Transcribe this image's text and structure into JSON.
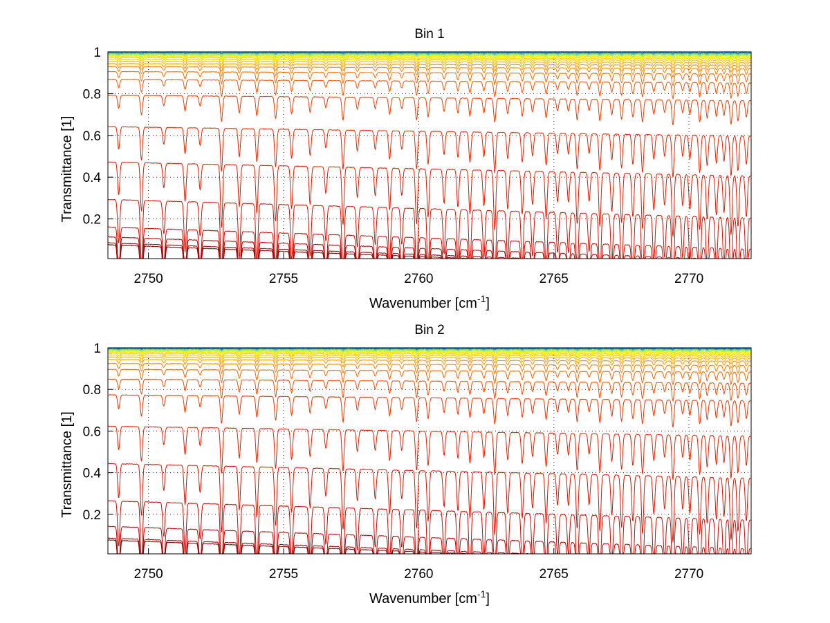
{
  "chart_data": [
    {
      "type": "line",
      "title": "Bin 1",
      "xlabel": "Wavenumber [cm",
      "xlabel_sup": "-1",
      "xlabel_suffix": "]",
      "ylabel": "Transmittance [1]",
      "xlim": [
        2748.5,
        2772.3
      ],
      "ylim": [
        0.01,
        1.0
      ],
      "xticks": [
        2750,
        2755,
        2760,
        2765,
        2770
      ],
      "xtick_labels": [
        "2750",
        "2755",
        "2760",
        "2765",
        "2770"
      ],
      "yticks": [
        0.2,
        0.4,
        0.6,
        0.8,
        1.0
      ],
      "ytick_labels": [
        "0.2",
        "0.4",
        "0.6",
        "0.8",
        "1"
      ],
      "grid": "dotted",
      "series_baselines": [
        0.02,
        0.03,
        0.06,
        0.11,
        0.25,
        0.44,
        0.62,
        0.78,
        0.86,
        0.9,
        0.925,
        0.94,
        0.952,
        0.962,
        0.97,
        0.976,
        0.981,
        0.985,
        0.988,
        0.991,
        0.993,
        0.995,
        0.997,
        0.998
      ],
      "series_colors": [
        "#7f0000",
        "#9a0000",
        "#b20000",
        "#c80600",
        "#d41000",
        "#e01a00",
        "#e62400",
        "#ee3a00",
        "#f25200",
        "#f66a00",
        "#f88000",
        "#fa9600",
        "#fcac00",
        "#fdc200",
        "#fed600",
        "#ffe600",
        "#f0f000",
        "#d4f020",
        "#b4ec48",
        "#8ee070",
        "#66d49a",
        "#40c2c0",
        "#1aaad8",
        "#0a8ae0"
      ]
    },
    {
      "type": "line",
      "title": "Bin 2",
      "xlabel": "Wavenumber [cm",
      "xlabel_sup": "-1",
      "xlabel_suffix": "]",
      "ylabel": "Transmittance [1]",
      "xlim": [
        2748.5,
        2772.3
      ],
      "ylim": [
        0.01,
        1.0
      ],
      "xticks": [
        2750,
        2755,
        2760,
        2765,
        2770
      ],
      "xtick_labels": [
        "2750",
        "2755",
        "2760",
        "2765",
        "2770"
      ],
      "yticks": [
        0.2,
        0.4,
        0.6,
        0.8,
        1.0
      ],
      "ytick_labels": [
        "0.2",
        "0.4",
        "0.6",
        "0.8",
        "1"
      ],
      "grid": "dotted",
      "series_baselines": [
        0.02,
        0.03,
        0.09,
        0.22,
        0.41,
        0.6,
        0.76,
        0.84,
        0.89,
        0.92,
        0.94,
        0.953,
        0.963,
        0.971,
        0.977,
        0.982,
        0.986,
        0.989,
        0.992,
        0.994,
        0.996,
        0.997,
        0.998,
        0.999
      ],
      "series_colors": [
        "#7f0000",
        "#9a0000",
        "#b80000",
        "#cc0800",
        "#da1400",
        "#e42000",
        "#ec3400",
        "#f04c00",
        "#f46400",
        "#f77c00",
        "#f99400",
        "#fbaa00",
        "#fdc000",
        "#fed400",
        "#ffe400",
        "#f4f000",
        "#d8f018",
        "#b8ec40",
        "#92e068",
        "#6ad294",
        "#44c2bc",
        "#20aad6",
        "#0c8ce0",
        "#0060c8"
      ]
    }
  ]
}
